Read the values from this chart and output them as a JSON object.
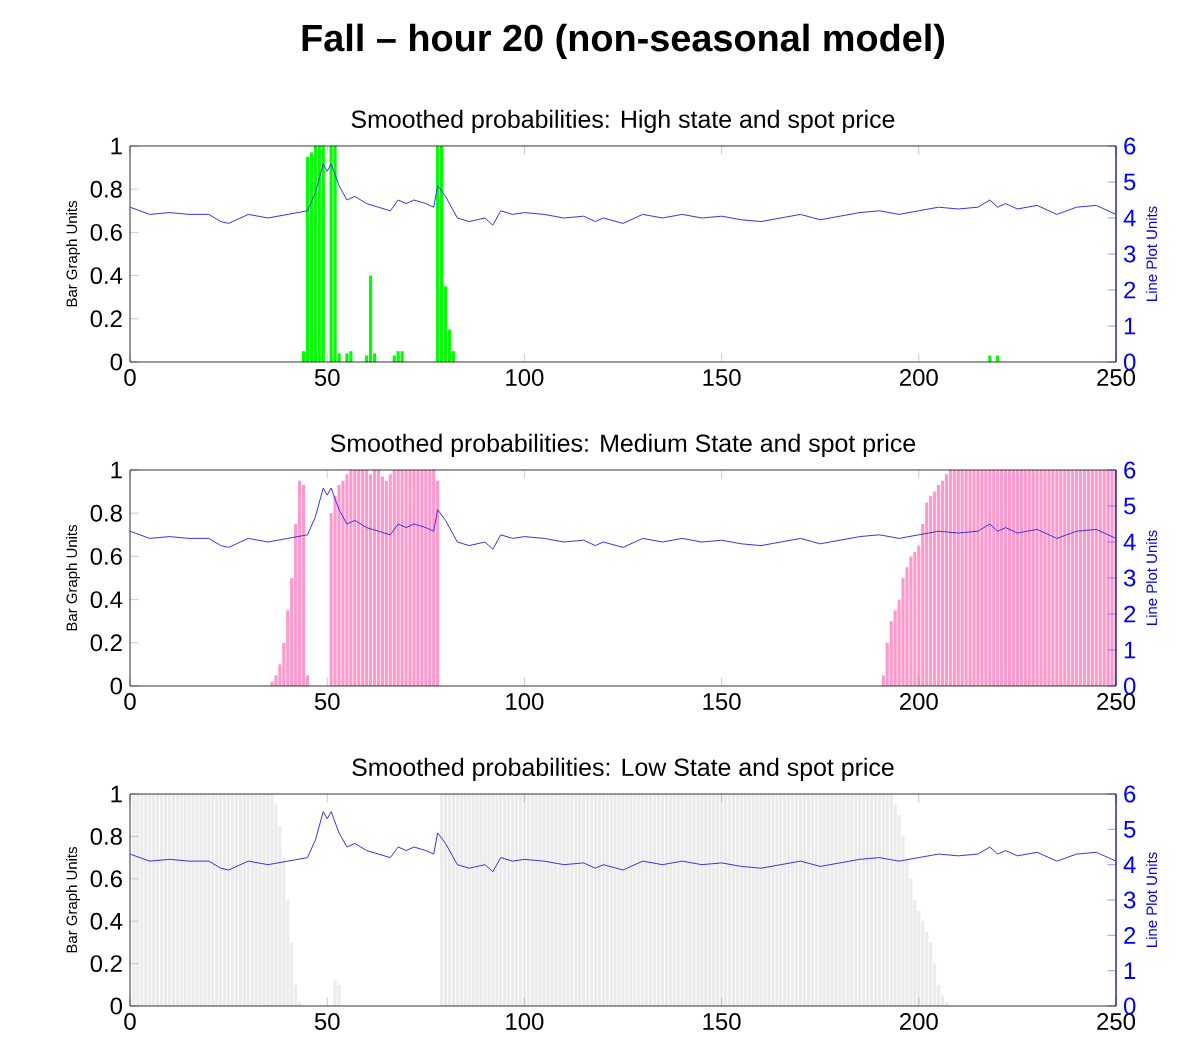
{
  "chart_data": [
    {
      "type": "bar",
      "title": "Fall – hour 20 (non-seasonal model)",
      "subtitle": "Smoothed probabilities: High state and spot price",
      "ylabel": "Bar Graph Units",
      "y2label": "Line Plot Units",
      "xlim": [
        0,
        250
      ],
      "xticks": [
        0,
        50,
        100,
        150,
        200,
        250
      ],
      "ylim": [
        0,
        1
      ],
      "yticks": [
        0,
        0.2,
        0.4,
        0.6,
        0.8,
        1
      ],
      "y2lim": [
        0,
        6
      ],
      "y2ticks": [
        0,
        1,
        2,
        3,
        4,
        5,
        6
      ],
      "series": [
        {
          "color": "#00ff00",
          "x": [
            44,
            45,
            46,
            47,
            48,
            49,
            51,
            52,
            53,
            55,
            56,
            60,
            61,
            62,
            67,
            68,
            69,
            78,
            79,
            80,
            81,
            82,
            218,
            220
          ],
          "values": [
            0.05,
            0.95,
            0.97,
            1,
            1,
            1,
            1,
            1,
            0.04,
            0.04,
            0.05,
            0.03,
            0.4,
            0.04,
            0.03,
            0.05,
            0.05,
            1,
            1,
            0.35,
            0.15,
            0.05,
            0.03,
            0.03
          ]
        },
        {
          "type": "line",
          "axis": "y2",
          "color": "#3333ee",
          "x": [
            0,
            5,
            10,
            15,
            20,
            23,
            25,
            30,
            35,
            40,
            45,
            47,
            49,
            50,
            51,
            53,
            55,
            57,
            60,
            63,
            66,
            68,
            70,
            72,
            75,
            77,
            78,
            80,
            83,
            86,
            90,
            92,
            94,
            97,
            100,
            105,
            110,
            115,
            118,
            120,
            125,
            130,
            135,
            140,
            145,
            150,
            155,
            160,
            165,
            170,
            175,
            180,
            185,
            190,
            195,
            200,
            205,
            210,
            215,
            218,
            220,
            222,
            225,
            230,
            235,
            240,
            245,
            250
          ],
          "values": [
            4.3,
            4.1,
            4.15,
            4.1,
            4.1,
            3.9,
            3.85,
            4.1,
            4.0,
            4.1,
            4.2,
            4.7,
            5.5,
            5.3,
            5.5,
            4.9,
            4.5,
            4.6,
            4.4,
            4.3,
            4.2,
            4.5,
            4.4,
            4.5,
            4.4,
            4.3,
            4.9,
            4.6,
            4.0,
            3.9,
            4.0,
            3.8,
            4.2,
            4.1,
            4.15,
            4.1,
            4.0,
            4.05,
            3.9,
            4.0,
            3.85,
            4.1,
            4.0,
            4.1,
            4.0,
            4.05,
            3.95,
            3.9,
            4.0,
            4.1,
            3.95,
            4.05,
            4.15,
            4.2,
            4.1,
            4.2,
            4.3,
            4.25,
            4.3,
            4.5,
            4.3,
            4.4,
            4.25,
            4.35,
            4.1,
            4.3,
            4.35,
            4.1
          ]
        }
      ]
    },
    {
      "type": "bar",
      "title": "Smoothed probabilities: Medium State and spot price",
      "ylabel": "Bar Graph Units",
      "y2label": "Line Plot Units",
      "xlim": [
        0,
        250
      ],
      "xticks": [
        0,
        50,
        100,
        150,
        200,
        250
      ],
      "ylim": [
        0,
        1
      ],
      "yticks": [
        0,
        0.2,
        0.4,
        0.6,
        0.8,
        1
      ],
      "y2lim": [
        0,
        6
      ],
      "y2ticks": [
        0,
        1,
        2,
        3,
        4,
        5,
        6
      ],
      "series": [
        {
          "color": "#ff99cc",
          "x": [
            36,
            37,
            38,
            39,
            40,
            41,
            42,
            43,
            44,
            45,
            51,
            52,
            53,
            54,
            55,
            56,
            57,
            58,
            59,
            60,
            61,
            62,
            63,
            64,
            65,
            66,
            67,
            68,
            69,
            70,
            71,
            72,
            73,
            74,
            75,
            76,
            77,
            78,
            191,
            192,
            193,
            194,
            195,
            196,
            197,
            198,
            199,
            200,
            201,
            202,
            203,
            204,
            205,
            206,
            207,
            208,
            209,
            210,
            211,
            212,
            213,
            214,
            215,
            216,
            217,
            218,
            219,
            220,
            221,
            222,
            223,
            224,
            225,
            226,
            227,
            228,
            229,
            230,
            231,
            232,
            233,
            234,
            235,
            236,
            237,
            238,
            239,
            240,
            241,
            242,
            243,
            244,
            245,
            246,
            247,
            248,
            249,
            250
          ],
          "values": [
            0.02,
            0.05,
            0.1,
            0.2,
            0.35,
            0.5,
            0.75,
            0.95,
            0.93,
            0.05,
            0.8,
            0.88,
            0.93,
            0.95,
            0.98,
            1,
            1,
            1,
            1,
            1,
            0.98,
            1,
            1,
            0.97,
            0.95,
            0.98,
            1,
            1,
            1,
            1,
            1,
            1,
            1,
            1,
            1,
            1,
            1,
            0.95,
            0.05,
            0.2,
            0.3,
            0.35,
            0.4,
            0.5,
            0.55,
            0.6,
            0.62,
            0.65,
            0.75,
            0.85,
            0.88,
            0.9,
            0.93,
            0.95,
            0.98,
            1,
            1,
            1,
            1,
            1,
            1,
            1,
            1,
            1,
            1,
            1,
            1,
            1,
            1,
            1,
            1,
            1,
            1,
            1,
            1,
            1,
            1,
            1,
            1,
            1,
            1,
            1,
            1,
            1,
            1,
            1,
            1,
            1,
            1,
            1,
            1,
            1,
            1,
            1,
            1,
            1,
            1,
            1
          ]
        },
        {
          "type": "line",
          "axis": "y2",
          "color": "#3333ee",
          "x": [
            0,
            5,
            10,
            15,
            20,
            23,
            25,
            30,
            35,
            40,
            45,
            47,
            49,
            50,
            51,
            53,
            55,
            57,
            60,
            63,
            66,
            68,
            70,
            72,
            75,
            77,
            78,
            80,
            83,
            86,
            90,
            92,
            94,
            97,
            100,
            105,
            110,
            115,
            118,
            120,
            125,
            130,
            135,
            140,
            145,
            150,
            155,
            160,
            165,
            170,
            175,
            180,
            185,
            190,
            195,
            200,
            205,
            210,
            215,
            218,
            220,
            222,
            225,
            230,
            235,
            240,
            245,
            250
          ],
          "values": [
            4.3,
            4.1,
            4.15,
            4.1,
            4.1,
            3.9,
            3.85,
            4.1,
            4.0,
            4.1,
            4.2,
            4.7,
            5.5,
            5.3,
            5.5,
            4.9,
            4.5,
            4.6,
            4.4,
            4.3,
            4.2,
            4.5,
            4.4,
            4.5,
            4.4,
            4.3,
            4.9,
            4.6,
            4.0,
            3.9,
            4.0,
            3.8,
            4.2,
            4.1,
            4.15,
            4.1,
            4.0,
            4.05,
            3.9,
            4.0,
            3.85,
            4.1,
            4.0,
            4.1,
            4.0,
            4.05,
            3.95,
            3.9,
            4.0,
            4.1,
            3.95,
            4.05,
            4.15,
            4.2,
            4.1,
            4.2,
            4.3,
            4.25,
            4.3,
            4.5,
            4.3,
            4.4,
            4.25,
            4.35,
            4.1,
            4.3,
            4.35,
            4.1
          ]
        }
      ]
    },
    {
      "type": "bar",
      "title": "Smoothed probabilities: Low State and spot price",
      "ylabel": "Bar Graph Units",
      "y2label": "Line Plot Units",
      "xlim": [
        0,
        250
      ],
      "xticks": [
        0,
        50,
        100,
        150,
        200,
        250
      ],
      "ylim": [
        0,
        1
      ],
      "yticks": [
        0,
        0.2,
        0.4,
        0.6,
        0.8,
        1
      ],
      "y2lim": [
        0,
        6
      ],
      "y2ticks": [
        0,
        1,
        2,
        3,
        4,
        5,
        6
      ],
      "series": [
        {
          "color": "#ebebeb",
          "x": [
            1,
            2,
            3,
            4,
            5,
            6,
            7,
            8,
            9,
            10,
            11,
            12,
            13,
            14,
            15,
            16,
            17,
            18,
            19,
            20,
            21,
            22,
            23,
            24,
            25,
            26,
            27,
            28,
            29,
            30,
            31,
            32,
            33,
            34,
            35,
            36,
            37,
            38,
            39,
            40,
            41,
            42,
            43,
            52,
            53,
            79,
            80,
            81,
            82,
            83,
            84,
            85,
            86,
            87,
            88,
            89,
            90,
            91,
            92,
            93,
            94,
            95,
            96,
            97,
            98,
            99,
            100,
            101,
            102,
            103,
            104,
            105,
            106,
            107,
            108,
            109,
            110,
            111,
            112,
            113,
            114,
            115,
            116,
            117,
            118,
            119,
            120,
            121,
            122,
            123,
            124,
            125,
            126,
            127,
            128,
            129,
            130,
            131,
            132,
            133,
            134,
            135,
            136,
            137,
            138,
            139,
            140,
            141,
            142,
            143,
            144,
            145,
            146,
            147,
            148,
            149,
            150,
            151,
            152,
            153,
            154,
            155,
            156,
            157,
            158,
            159,
            160,
            161,
            162,
            163,
            164,
            165,
            166,
            167,
            168,
            169,
            170,
            171,
            172,
            173,
            174,
            175,
            176,
            177,
            178,
            179,
            180,
            181,
            182,
            183,
            184,
            185,
            186,
            187,
            188,
            189,
            190,
            191,
            192,
            193,
            194,
            195,
            196,
            197,
            198,
            199,
            200,
            201,
            202,
            203,
            204,
            205,
            206,
            207
          ],
          "values": [
            1,
            1,
            1,
            1,
            1,
            1,
            1,
            1,
            1,
            1,
            1,
            1,
            1,
            1,
            1,
            1,
            1,
            1,
            1,
            1,
            1,
            1,
            1,
            1,
            1,
            1,
            1,
            1,
            1,
            1,
            1,
            1,
            1,
            1,
            1,
            1,
            0.95,
            0.85,
            0.7,
            0.5,
            0.3,
            0.1,
            0.02,
            0.12,
            0.1,
            1,
            1,
            1,
            1,
            1,
            1,
            1,
            1,
            1,
            1,
            1,
            1,
            1,
            1,
            1,
            1,
            1,
            1,
            1,
            1,
            1,
            1,
            1,
            1,
            1,
            1,
            1,
            1,
            1,
            1,
            1,
            1,
            1,
            1,
            1,
            1,
            1,
            1,
            1,
            1,
            1,
            1,
            1,
            1,
            1,
            1,
            1,
            1,
            1,
            1,
            1,
            1,
            1,
            1,
            1,
            1,
            1,
            1,
            1,
            1,
            1,
            1,
            1,
            1,
            1,
            1,
            1,
            1,
            1,
            1,
            1,
            1,
            1,
            1,
            1,
            1,
            1,
            1,
            1,
            1,
            1,
            1,
            1,
            1,
            1,
            1,
            1,
            1,
            1,
            1,
            1,
            1,
            1,
            1,
            1,
            1,
            1,
            1,
            1,
            1,
            1,
            1,
            1,
            1,
            1,
            1,
            1,
            1,
            1,
            1,
            1,
            1,
            1,
            1,
            1,
            0.95,
            0.9,
            0.8,
            0.7,
            0.6,
            0.5,
            0.45,
            0.4,
            0.35,
            0.3,
            0.2,
            0.1,
            0.05,
            0.02
          ]
        },
        {
          "type": "line",
          "axis": "y2",
          "color": "#3333ee",
          "x": [
            0,
            5,
            10,
            15,
            20,
            23,
            25,
            30,
            35,
            40,
            45,
            47,
            49,
            50,
            51,
            53,
            55,
            57,
            60,
            63,
            66,
            68,
            70,
            72,
            75,
            77,
            78,
            80,
            83,
            86,
            90,
            92,
            94,
            97,
            100,
            105,
            110,
            115,
            118,
            120,
            125,
            130,
            135,
            140,
            145,
            150,
            155,
            160,
            165,
            170,
            175,
            180,
            185,
            190,
            195,
            200,
            205,
            210,
            215,
            218,
            220,
            222,
            225,
            230,
            235,
            240,
            245,
            250
          ],
          "values": [
            4.3,
            4.1,
            4.15,
            4.1,
            4.1,
            3.9,
            3.85,
            4.1,
            4.0,
            4.1,
            4.2,
            4.7,
            5.5,
            5.3,
            5.5,
            4.9,
            4.5,
            4.6,
            4.4,
            4.3,
            4.2,
            4.5,
            4.4,
            4.5,
            4.4,
            4.3,
            4.9,
            4.6,
            4.0,
            3.9,
            4.0,
            3.8,
            4.2,
            4.1,
            4.15,
            4.1,
            4.0,
            4.05,
            3.9,
            4.0,
            3.85,
            4.1,
            4.0,
            4.1,
            4.0,
            4.05,
            3.95,
            3.9,
            4.0,
            4.1,
            3.95,
            4.05,
            4.15,
            4.2,
            4.1,
            4.2,
            4.3,
            4.25,
            4.3,
            4.5,
            4.3,
            4.4,
            4.25,
            4.35,
            4.1,
            4.3,
            4.35,
            4.1
          ]
        }
      ]
    }
  ]
}
